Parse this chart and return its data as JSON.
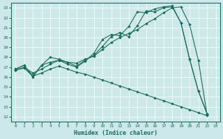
{
  "xlabel": "Humidex (Indice chaleur)",
  "xlim": [
    -0.5,
    23.5
  ],
  "ylim": [
    11.5,
    23.5
  ],
  "xticks": [
    0,
    1,
    2,
    3,
    4,
    5,
    6,
    7,
    8,
    9,
    10,
    11,
    12,
    13,
    14,
    15,
    16,
    17,
    18,
    19,
    20,
    21,
    22,
    23
  ],
  "yticks": [
    12,
    13,
    14,
    15,
    16,
    17,
    18,
    19,
    20,
    21,
    22,
    23
  ],
  "bg_color": "#cce8e8",
  "line_color": "#1a6b5a",
  "grid_color": "#ffffff",
  "line1_x": [
    0,
    1,
    2,
    3,
    4,
    5,
    6,
    7,
    8,
    9,
    10,
    11,
    12,
    13,
    14,
    15,
    16,
    17,
    18,
    19,
    20,
    21,
    22
  ],
  "line1_y": [
    16.8,
    17.2,
    16.0,
    17.2,
    17.5,
    17.7,
    17.3,
    17.0,
    17.6,
    18.4,
    19.8,
    20.3,
    20.2,
    21.1,
    22.6,
    22.5,
    22.9,
    23.1,
    23.2,
    21.5,
    17.8,
    14.6,
    12.3
  ],
  "line2_x": [
    0,
    1,
    2,
    3,
    4,
    5,
    6,
    7,
    8,
    9,
    10,
    11,
    12,
    13,
    14,
    15,
    16,
    17,
    18,
    19,
    20,
    21,
    22
  ],
  "line2_y": [
    16.8,
    17.2,
    16.1,
    17.2,
    18.0,
    17.8,
    17.5,
    17.1,
    17.7,
    18.2,
    19.1,
    20.1,
    20.5,
    20.1,
    21.2,
    22.7,
    22.6,
    23.0,
    23.1,
    21.5,
    17.8,
    14.6,
    12.3
  ],
  "line3_x": [
    0,
    1,
    2,
    3,
    4,
    5,
    6,
    7,
    8,
    9,
    10,
    11,
    12,
    13,
    14,
    15,
    16,
    17,
    18,
    19,
    20,
    21,
    22
  ],
  "line3_y": [
    16.7,
    17.0,
    16.4,
    16.8,
    17.3,
    17.7,
    17.5,
    17.4,
    17.8,
    18.1,
    18.8,
    19.5,
    20.0,
    20.4,
    20.8,
    21.4,
    21.9,
    22.5,
    23.0,
    23.1,
    21.3,
    17.7,
    12.2
  ],
  "line4_x": [
    0,
    1,
    2,
    3,
    4,
    5,
    6,
    7,
    8,
    9,
    10,
    11,
    12,
    13,
    14,
    15,
    16,
    17,
    18,
    19,
    20,
    21,
    22
  ],
  "line4_y": [
    16.7,
    16.9,
    16.1,
    16.4,
    16.8,
    17.1,
    16.8,
    16.5,
    16.3,
    16.0,
    15.7,
    15.4,
    15.1,
    14.8,
    14.5,
    14.2,
    13.9,
    13.6,
    13.3,
    13.0,
    12.7,
    12.4,
    12.1
  ]
}
